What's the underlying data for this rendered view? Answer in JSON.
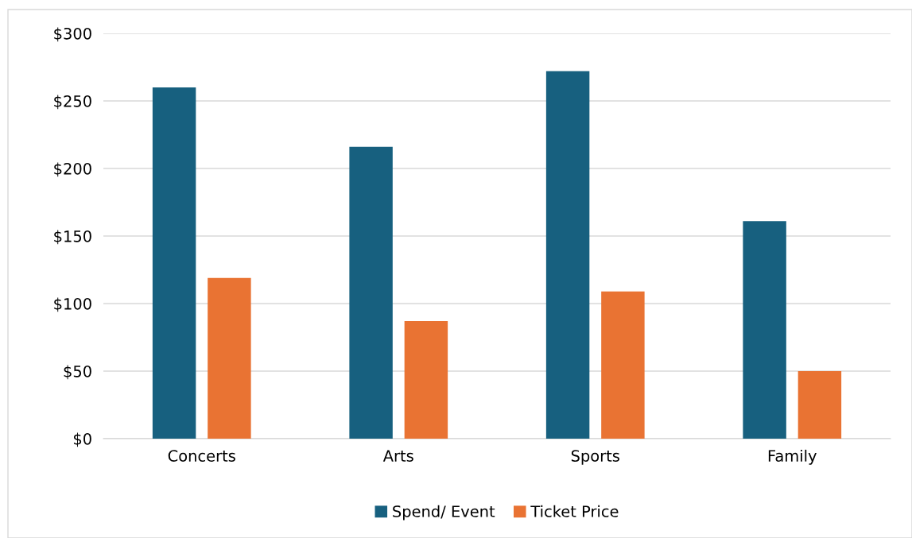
{
  "chart_data": {
    "type": "bar",
    "categories": [
      "Concerts",
      "Arts",
      "Sports",
      "Family"
    ],
    "series": [
      {
        "name": "Spend/ Event",
        "color": "#17607f",
        "values": [
          260,
          216,
          272,
          161
        ]
      },
      {
        "name": "Ticket Price",
        "color": "#e97333",
        "values": [
          119,
          87,
          109,
          50
        ]
      }
    ],
    "ylim": [
      0,
      300
    ],
    "yticks": [
      {
        "value": 0,
        "label": "$0"
      },
      {
        "value": 50,
        "label": "$50"
      },
      {
        "value": 100,
        "label": "$100"
      },
      {
        "value": 150,
        "label": "$150"
      },
      {
        "value": 200,
        "label": "$200"
      },
      {
        "value": 250,
        "label": "$250"
      },
      {
        "value": 300,
        "label": "$300"
      }
    ],
    "grid": "y",
    "legend": "bottom"
  }
}
